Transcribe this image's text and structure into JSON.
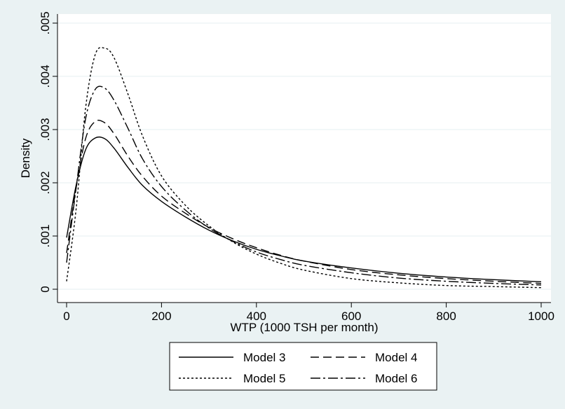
{
  "chart_data": {
    "type": "line",
    "xlabel": "WTP (1000 TSH per month)",
    "ylabel": "Density",
    "xlim": [
      0,
      1000
    ],
    "ylim": [
      0,
      0.005
    ],
    "xticks": [
      0,
      200,
      400,
      600,
      800,
      1000
    ],
    "xtick_labels": [
      "0",
      "200",
      "400",
      "600",
      "800",
      "1000"
    ],
    "yticks": [
      0,
      0.001,
      0.002,
      0.003,
      0.004,
      0.005
    ],
    "ytick_labels": [
      "0",
      ".001",
      ".002",
      ".003",
      ".004",
      ".005"
    ],
    "grid": "horizontal",
    "legend_position": "bottom",
    "background_color": "#EAF2F3",
    "plot_background_color": "#FFFFFF",
    "grid_color": "#EAF2F3",
    "x": [
      0,
      20,
      40,
      60,
      80,
      100,
      130,
      160,
      200,
      250,
      300,
      350,
      400,
      450,
      500,
      600,
      700,
      800,
      900,
      1000
    ],
    "series": [
      {
        "name": "Model 3",
        "dash": "solid",
        "values": [
          0.00097,
          0.00195,
          0.00262,
          0.00284,
          0.00283,
          0.00265,
          0.00228,
          0.00195,
          0.00165,
          0.00136,
          0.00111,
          0.00091,
          0.00075,
          0.00063,
          0.00053,
          0.0004,
          0.0003,
          0.00023,
          0.00018,
          0.00014
        ]
      },
      {
        "name": "Model 4",
        "dash": "dashed",
        "values": [
          0.00068,
          0.0019,
          0.00283,
          0.00315,
          0.00313,
          0.00292,
          0.00249,
          0.00212,
          0.00175,
          0.00143,
          0.00116,
          0.00095,
          0.00078,
          0.00064,
          0.00053,
          0.00037,
          0.00027,
          0.0002,
          0.00015,
          0.00011
        ]
      },
      {
        "name": "Model 5",
        "dash": "dotted",
        "values": [
          0.00015,
          0.0015,
          0.0034,
          0.0044,
          0.00453,
          0.00435,
          0.00365,
          0.00288,
          0.00213,
          0.00158,
          0.00119,
          0.00089,
          0.00066,
          0.00049,
          0.00036,
          0.0002,
          0.00012,
          7e-05,
          5e-05,
          3e-05
        ]
      },
      {
        "name": "Model 6",
        "dash": "dashdot",
        "values": [
          0.0005,
          0.0019,
          0.0032,
          0.00375,
          0.00378,
          0.00355,
          0.00301,
          0.00245,
          0.00193,
          0.00149,
          0.00115,
          0.0009,
          0.0007,
          0.00056,
          0.00045,
          0.00031,
          0.00021,
          0.00015,
          0.00011,
          8e-05
        ]
      }
    ]
  }
}
